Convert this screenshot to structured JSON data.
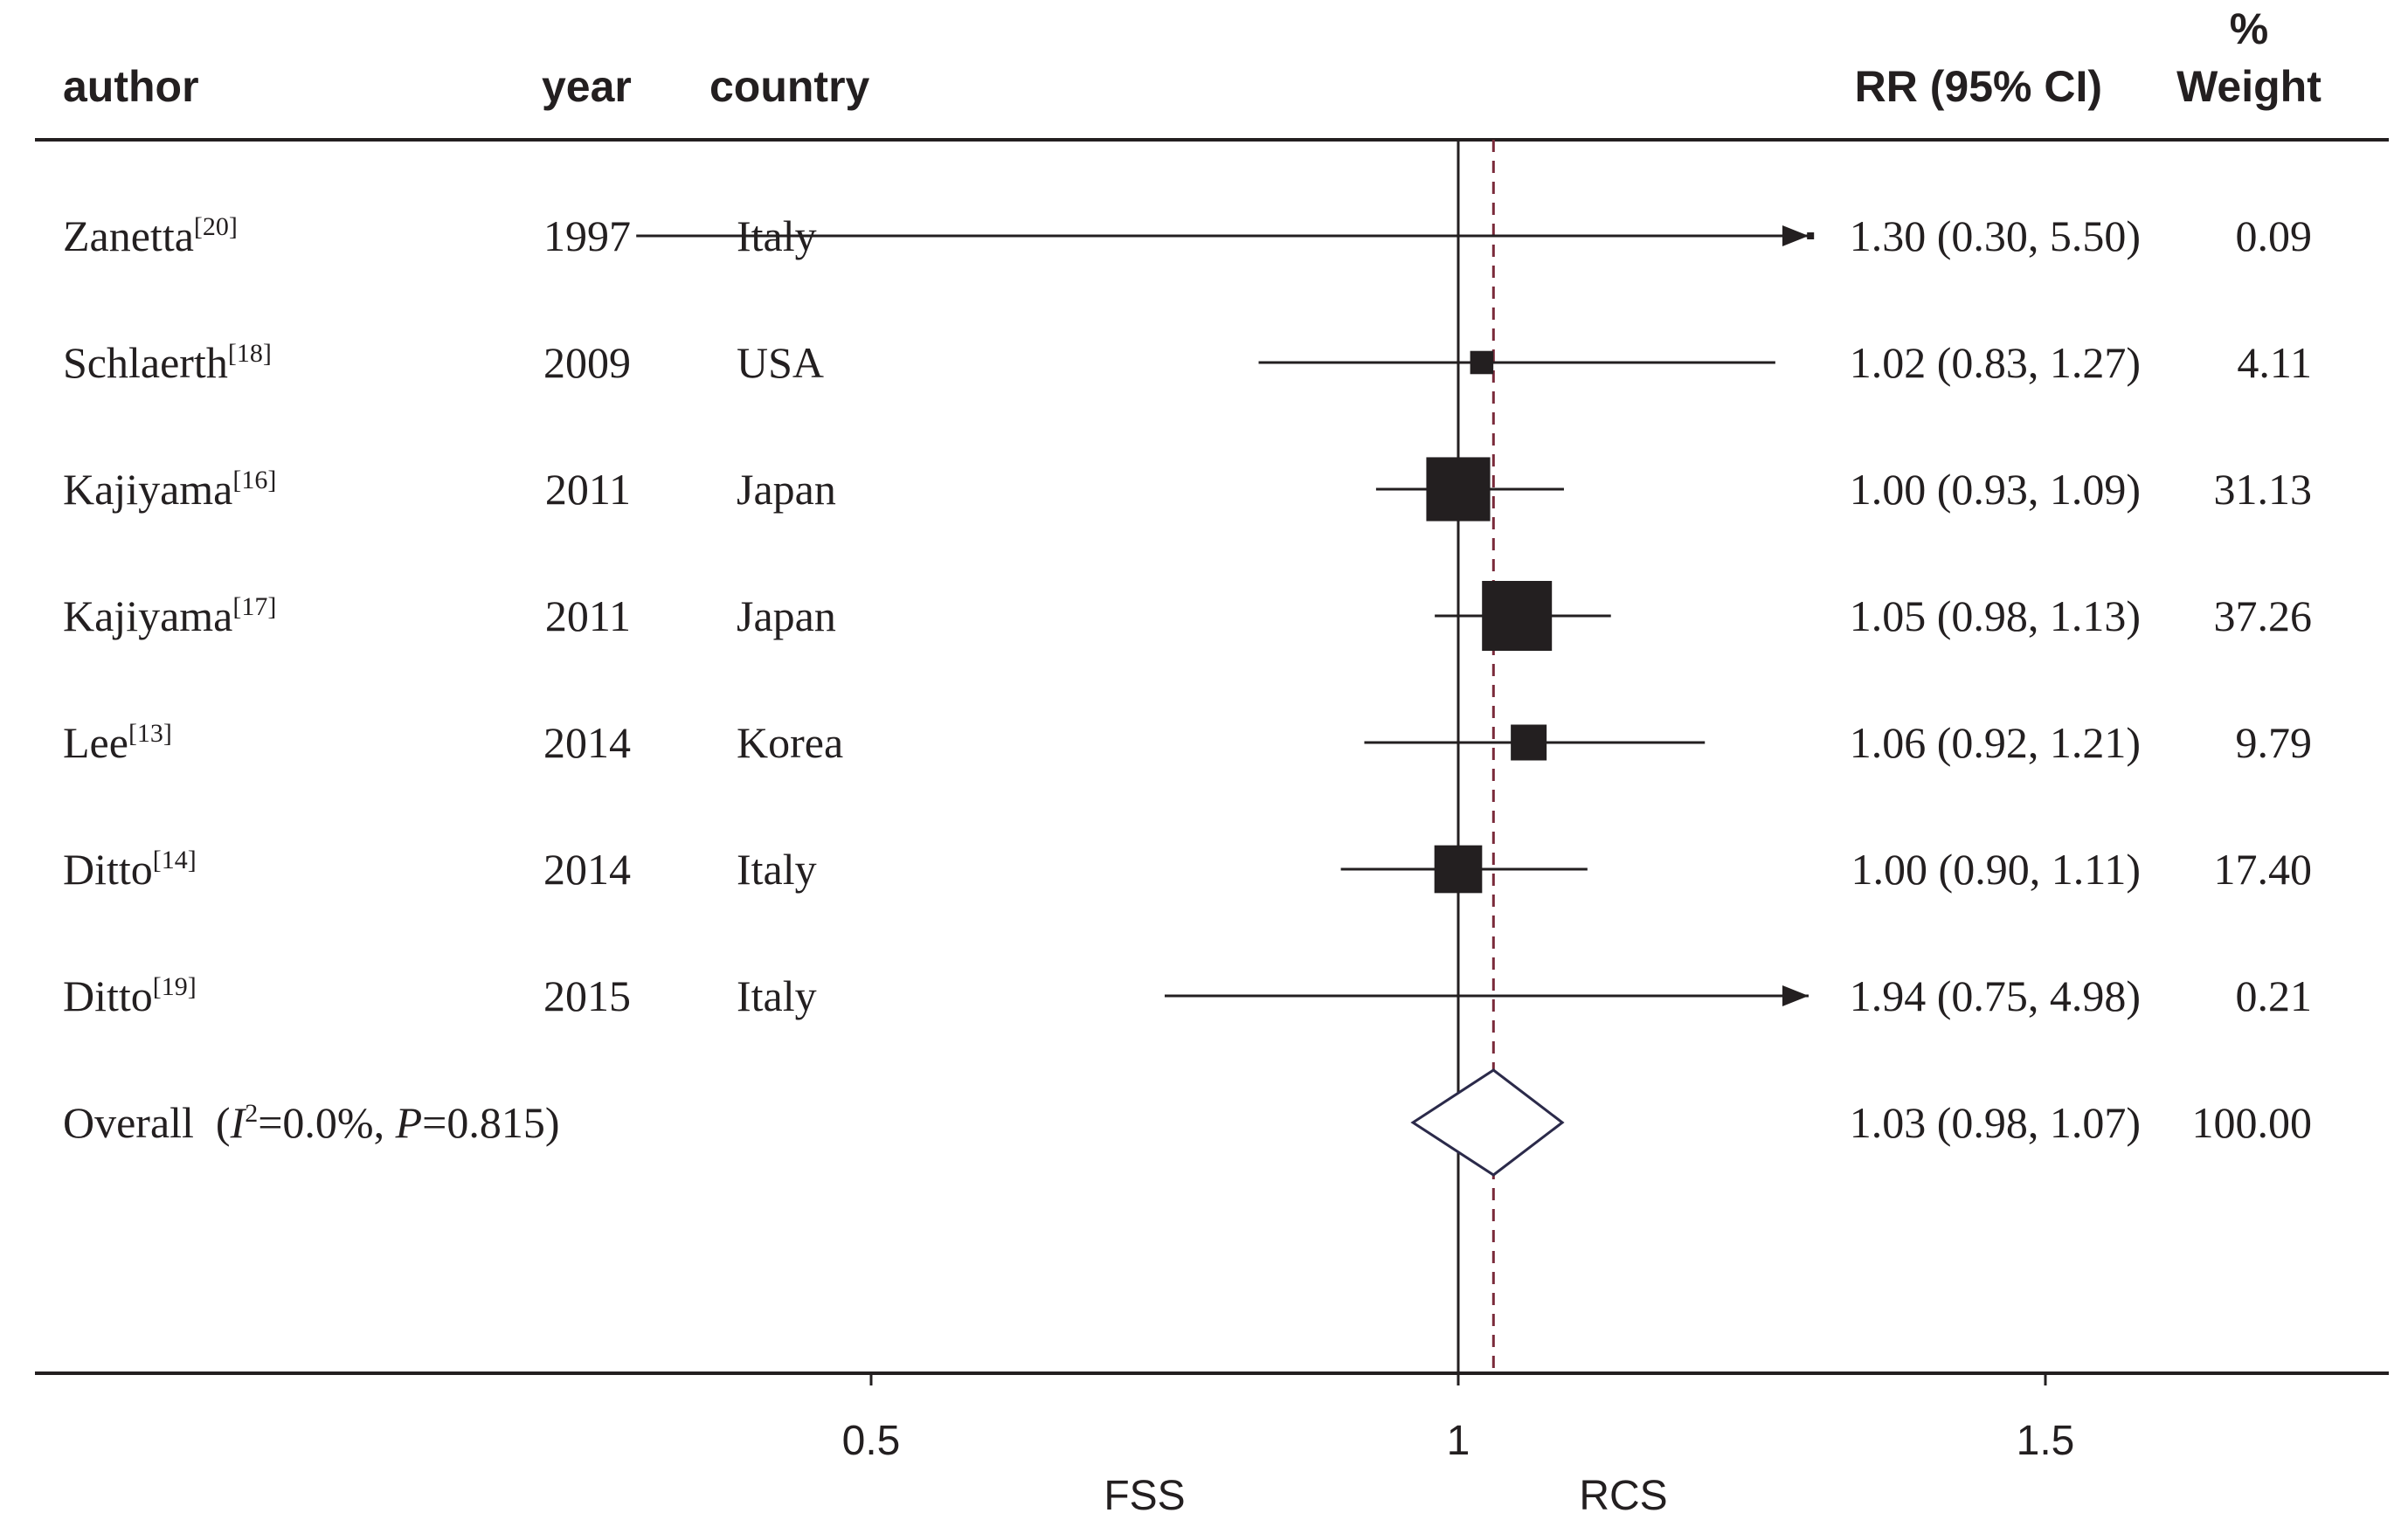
{
  "headers": {
    "author": "author",
    "year": "year",
    "country": "country",
    "rr": "RR (95% CI)",
    "weight_pct": "%",
    "weight": "Weight"
  },
  "rows": [
    {
      "author": "Zanetta",
      "ref": "[20]",
      "year": "1997",
      "country": "Italy",
      "rr_text": "1.30 (0.30, 5.50)",
      "weight_text": "0.09"
    },
    {
      "author": "Schlaerth",
      "ref": "[18]",
      "year": "2009",
      "country": "USA",
      "rr_text": "1.02 (0.83, 1.27)",
      "weight_text": "4.11"
    },
    {
      "author": "Kajiyama",
      "ref": "[16]",
      "year": "2011",
      "country": "Japan",
      "rr_text": "1.00 (0.93, 1.09)",
      "weight_text": "31.13"
    },
    {
      "author": "Kajiyama",
      "ref": "[17]",
      "year": "2011",
      "country": "Japan",
      "rr_text": "1.05 (0.98, 1.13)",
      "weight_text": "37.26"
    },
    {
      "author": "Lee",
      "ref": "[13]",
      "year": "2014",
      "country": "Korea",
      "rr_text": "1.06 (0.92, 1.21)",
      "weight_text": "9.79"
    },
    {
      "author": "Ditto",
      "ref": "[14]",
      "year": "2014",
      "country": "Italy",
      "rr_text": "1.00 (0.90, 1.11)",
      "weight_text": "17.40"
    },
    {
      "author": "Ditto",
      "ref": "[19]",
      "year": "2015",
      "country": "Italy",
      "rr_text": "1.94 (0.75, 4.98)",
      "weight_text": "0.21"
    }
  ],
  "overall": {
    "label": "Overall",
    "het_open": "(",
    "het_i": "I",
    "het_sq": "2",
    "het_mid": "=0.0%, ",
    "het_p": "P",
    "het_end": "=0.815)",
    "rr_text": "1.03 (0.98, 1.07)",
    "weight_text": "100.00"
  },
  "colors": {
    "text": "#231f20",
    "line": "#231f20",
    "box": "#231f20",
    "diamond": "#2b2a4a",
    "ref_dashed": "#7a2a3a"
  },
  "chart_data": {
    "type": "forest",
    "xlabel_left": "FSS",
    "xlabel_right": "RCS",
    "x_ticks": [
      0.5,
      1,
      1.5
    ],
    "x_tick_labels": [
      "0.5",
      "1",
      "1.5"
    ],
    "xlim": [
      0.27,
      1.82
    ],
    "null_line": 1,
    "overall_line": 1.03,
    "series": [
      {
        "name": "Zanetta",
        "rr": 1.3,
        "lo": 0.3,
        "hi": 5.5,
        "weight": 0.09
      },
      {
        "name": "Schlaerth",
        "rr": 1.02,
        "lo": 0.83,
        "hi": 1.27,
        "weight": 4.11
      },
      {
        "name": "Kajiyama",
        "rr": 1.0,
        "lo": 0.93,
        "hi": 1.09,
        "weight": 31.13
      },
      {
        "name": "Kajiyama",
        "rr": 1.05,
        "lo": 0.98,
        "hi": 1.13,
        "weight": 37.26
      },
      {
        "name": "Lee",
        "rr": 1.06,
        "lo": 0.92,
        "hi": 1.21,
        "weight": 9.79
      },
      {
        "name": "Ditto",
        "rr": 1.0,
        "lo": 0.9,
        "hi": 1.11,
        "weight": 17.4
      },
      {
        "name": "Ditto",
        "rr": 1.94,
        "lo": 0.75,
        "hi": 4.98,
        "weight": 0.21
      }
    ],
    "overall": {
      "rr": 1.03,
      "lo": 0.98,
      "hi": 1.07,
      "weight": 100.0
    }
  }
}
